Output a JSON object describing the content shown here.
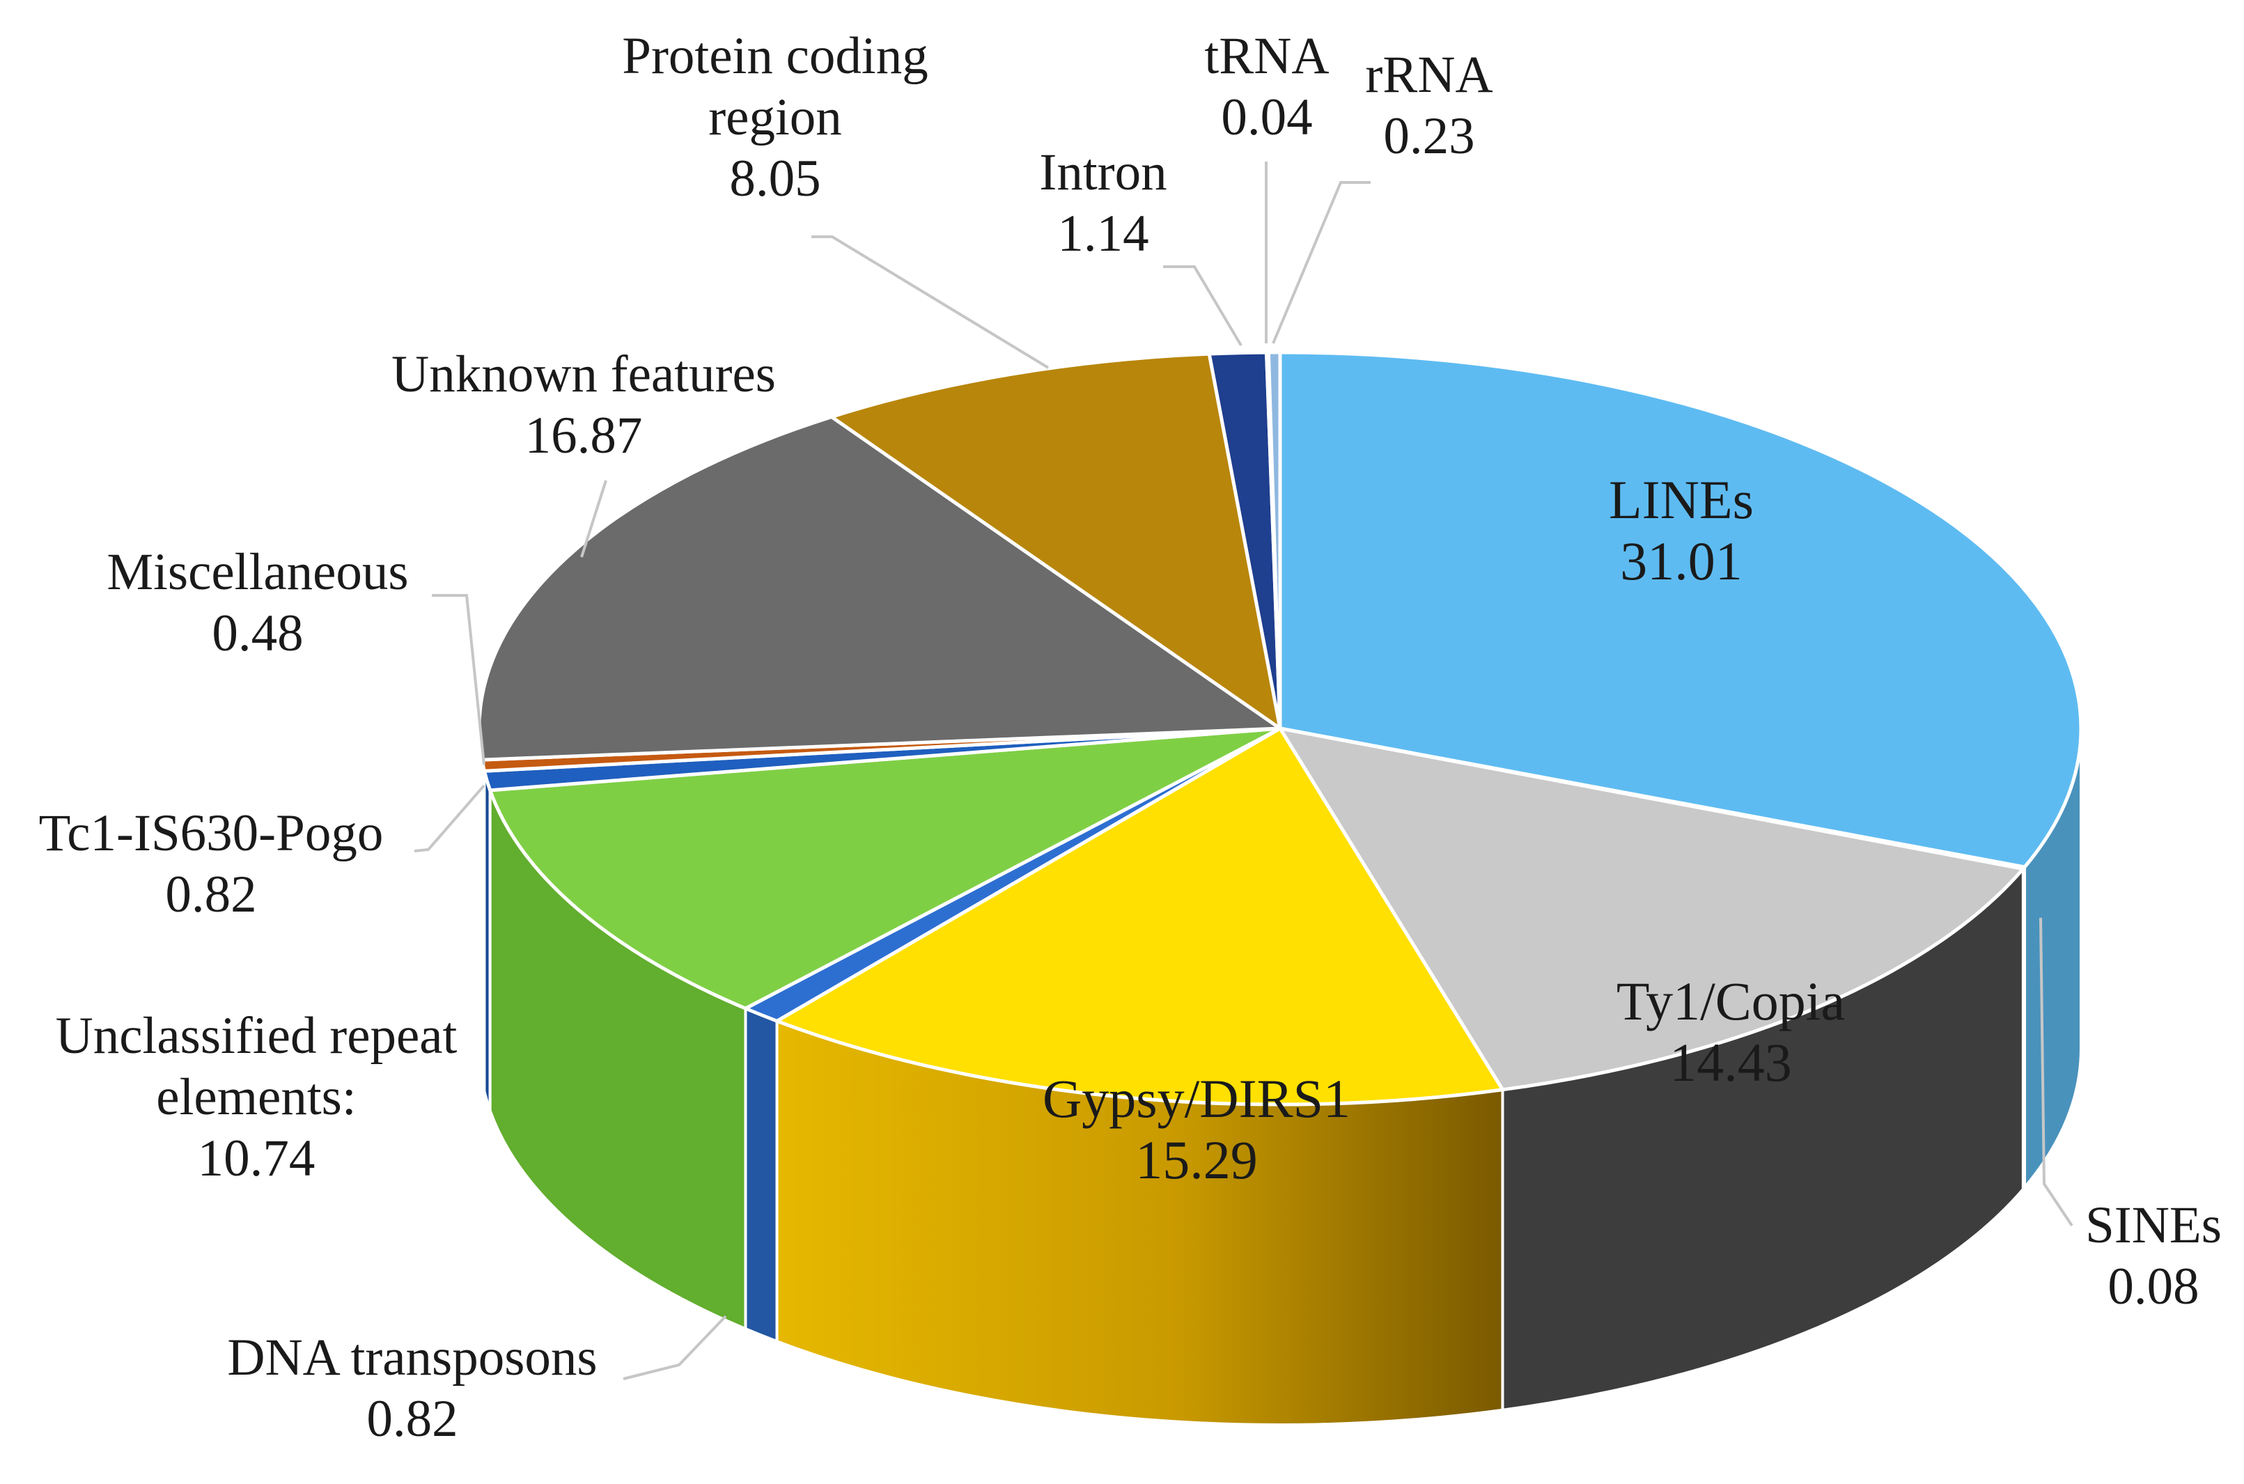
{
  "chart_data": {
    "type": "pie",
    "title": "",
    "units": "",
    "slices": [
      {
        "name": "LINEs",
        "value": 31.01,
        "color": "#5EBBF1"
      },
      {
        "name": "SINEs",
        "value": 0.08,
        "color": "#1F3F7A"
      },
      {
        "name": "Ty1/Copia",
        "value": 14.43,
        "color": "#C9C9C9"
      },
      {
        "name": "Gypsy/DIRS1",
        "value": 15.29,
        "color": "#FFE000"
      },
      {
        "name": "DNA transposons",
        "value": 0.82,
        "color": "#2D6FD1"
      },
      {
        "name": "Unclassified repeat elements:",
        "value": 10.74,
        "color": "#7FCF45"
      },
      {
        "name": "Tc1-IS630-Pogo",
        "value": 0.82,
        "color": "#1F5FBF"
      },
      {
        "name": "Miscellaneous",
        "value": 0.48,
        "color": "#C55A11"
      },
      {
        "name": "Unknown features",
        "value": 16.87,
        "color": "#6B6B6B"
      },
      {
        "name": "Protein coding region",
        "value": 8.05,
        "color": "#B8860B"
      },
      {
        "name": "Intron",
        "value": 1.14,
        "color": "#1F3F8F"
      },
      {
        "name": "tRNA",
        "value": 0.04,
        "color": "#3A5FA0"
      },
      {
        "name": "rRNA",
        "value": 0.23,
        "color": "#8FB8E0"
      }
    ],
    "labels": {
      "LINEs": [
        "LINEs",
        "31.01"
      ],
      "Ty1/Copia": [
        "Ty1/Copia",
        "14.43"
      ],
      "Gypsy/DIRS1": [
        "Gypsy/DIRS1",
        "15.29"
      ],
      "SINEs": [
        "SINEs",
        "0.08"
      ],
      "DNA transposons": [
        "DNA transposons",
        "0.82"
      ],
      "Unclassified repeat elements:": [
        "Unclassified repeat",
        "elements:",
        "10.74"
      ],
      "Tc1-IS630-Pogo": [
        "Tc1-IS630-Pogo",
        "0.82"
      ],
      "Miscellaneous": [
        "Miscellaneous",
        "0.48"
      ],
      "Unknown features": [
        "Unknown features",
        "16.87"
      ],
      "Protein coding region": [
        "Protein coding",
        "region",
        "8.05"
      ],
      "Intron": [
        "Intron",
        "1.14"
      ],
      "tRNA": [
        "tRNA",
        "0.04"
      ],
      "rRNA": [
        "rRNA",
        "0.23"
      ]
    }
  }
}
